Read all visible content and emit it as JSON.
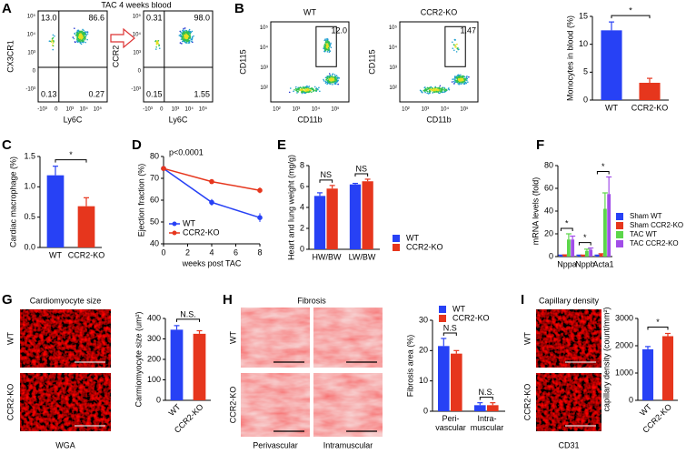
{
  "figure": {
    "panel_letters": [
      "A",
      "B",
      "C",
      "D",
      "E",
      "F",
      "G",
      "H",
      "I"
    ],
    "flow_title": "TAC 4 weeks blood",
    "flow_plots": [
      {
        "ylabel": "CX3CR1",
        "xlabel": "Ly6C",
        "quadrants": [
          "13.0",
          "86.6",
          "0.13",
          "0.27"
        ],
        "xticks": [
          "-10³",
          "0",
          "10³",
          "10⁴",
          "10⁵"
        ],
        "yticks": [
          "10⁵",
          "10⁴",
          "10³",
          "0",
          "-10³"
        ]
      },
      {
        "ylabel": "CCR2",
        "xlabel": "Ly6C",
        "quadrants": [
          "0.31",
          "98.0",
          "0.15",
          "1.55"
        ],
        "xticks": [
          "-10³",
          "0",
          "10³",
          "10⁴",
          "10⁵"
        ],
        "yticks": [
          "10⁵",
          "10⁴",
          "10³",
          "0",
          "-10³"
        ]
      },
      {
        "title": "WT",
        "ylabel": "CD115",
        "xlabel": "CD11b",
        "gate": "12.0",
        "xticks": [
          "10²",
          "10³",
          "10⁴",
          "10⁵"
        ],
        "yticks": [
          "10⁵",
          "10⁴",
          "10³",
          "10²"
        ]
      },
      {
        "title": "CCR2-KO",
        "ylabel": "CD115",
        "xlabel": "CD11b",
        "gate": "1.47",
        "xticks": [
          "10²",
          "10³",
          "10⁴",
          "10⁵"
        ],
        "yticks": [
          "10⁵",
          "10⁴",
          "10³",
          "10²"
        ]
      }
    ],
    "images": [
      {
        "title": "Cardiomyocyte size",
        "rows": [
          "WT",
          "CCR2-KO"
        ],
        "caption": "WGA"
      },
      {
        "title": "Fibrosis",
        "rows": [
          "WT",
          "CCR2-KO"
        ],
        "columns": [
          "Perivascular",
          "Intramuscular"
        ]
      },
      {
        "title": "Capillary density",
        "rows": [
          "WT",
          "CCR2-KO"
        ],
        "caption": "CD31"
      }
    ]
  },
  "chart_data": [
    {
      "type": "bar",
      "ylabel": "Monocytes in blood (%)",
      "categories": [
        "WT",
        "CCR2-KO"
      ],
      "values": [
        12.5,
        3.1
      ],
      "errors": [
        1.5,
        0.8
      ],
      "colors": [
        "#2741f5",
        "#e6361d"
      ],
      "ylim": [
        0,
        15
      ],
      "yticks": [
        0,
        5,
        10,
        15
      ],
      "annotations": [
        "*"
      ]
    },
    {
      "type": "bar",
      "ylabel": "Cardiac macrophage (%)",
      "categories": [
        "WT",
        "CCR2-KO"
      ],
      "values": [
        1.19,
        0.68
      ],
      "errors": [
        0.15,
        0.14
      ],
      "colors": [
        "#2741f5",
        "#e6361d"
      ],
      "ylim": [
        0,
        1.5
      ],
      "yticks": [
        {
          "value": 0,
          "label": "0.0"
        },
        0.5,
        {
          "value": 1,
          "label": "1.0"
        },
        1.5
      ],
      "annotations": [
        "*"
      ]
    },
    {
      "type": "line",
      "ylabel": "Ejection fraction (%)",
      "xlabel": "weeks post TAC",
      "x": [
        0,
        4,
        8
      ],
      "series": [
        {
          "name": "WT",
          "color": "#2741f5",
          "values": [
            74.5,
            59,
            52
          ],
          "errors": [
            1,
            1.5,
            2
          ]
        },
        {
          "name": "CCR2-KO",
          "color": "#e6361d",
          "values": [
            74.5,
            68.5,
            64.5
          ],
          "errors": [
            1,
            0.8,
            1.3
          ]
        }
      ],
      "xlim": [
        0,
        8
      ],
      "xticks": [
        0,
        2,
        4,
        6,
        8
      ],
      "ylim": [
        40,
        80
      ],
      "yticks": [
        40,
        50,
        60,
        70,
        80
      ],
      "annotations": [
        "p<0.0001"
      ],
      "legend": "lower left"
    },
    {
      "type": "bar",
      "ylabel": "Heart and lung weight (mg/g)",
      "categories": [
        "HW/BW",
        "LW/BW"
      ],
      "series": [
        {
          "name": "WT",
          "color": "#2741f5",
          "values": [
            5.1,
            6.2
          ],
          "errors": [
            0.3,
            0.1
          ]
        },
        {
          "name": "CCR2-KO",
          "color": "#e6361d",
          "values": [
            5.8,
            6.5
          ],
          "errors": [
            0.3,
            0.2
          ]
        }
      ],
      "ylim": [
        0,
        8
      ],
      "yticks": [
        0,
        2,
        4,
        6,
        8
      ],
      "annotations": [
        "NS",
        "NS"
      ],
      "legend": "right"
    },
    {
      "type": "bar",
      "ylabel": "mRNA levels (fold)",
      "categories": [
        "Nppa",
        "Nppb",
        "Acta1"
      ],
      "series": [
        {
          "name": "Sham WT",
          "color": "#2741f5",
          "values": [
            1,
            1,
            1
          ],
          "errors": [
            0.3,
            0.3,
            0.3
          ]
        },
        {
          "name": "Sham CCR2-KO",
          "color": "#e6361d",
          "values": [
            1.2,
            1,
            2
          ],
          "errors": [
            0.3,
            0.3,
            0.5
          ]
        },
        {
          "name": "TAC WT",
          "color": "#5cd64a",
          "values": [
            15,
            5,
            42
          ],
          "errors": [
            5,
            1.5,
            14
          ]
        },
        {
          "name": "TAC CCR2-KO",
          "color": "#a14de8",
          "values": [
            15,
            6,
            55
          ],
          "errors": [
            3,
            1.5,
            15
          ]
        }
      ],
      "ylim": [
        0,
        80
      ],
      "yticks": [
        0,
        20,
        40,
        60,
        80
      ],
      "annotations": [
        "*",
        "*",
        "*"
      ],
      "legend": "right"
    },
    {
      "type": "bar",
      "ylabel": "Carmiomyocyte size (um²)",
      "categories": [
        "WT",
        "CCR2-KO"
      ],
      "values": [
        345,
        325
      ],
      "errors": [
        20,
        15
      ],
      "colors": [
        "#2741f5",
        "#e6361d"
      ],
      "ylim": [
        0,
        400
      ],
      "yticks": [
        0,
        100,
        200,
        300,
        400
      ],
      "annotations": [
        "N.S."
      ],
      "xlabel_rotation": 45
    },
    {
      "type": "bar",
      "ylabel": "Fibrosis area (%)",
      "categories": [
        "Peri-\nvascular",
        "Intra-\nmuscular"
      ],
      "series": [
        {
          "name": "WT",
          "color": "#2741f5",
          "values": [
            21.5,
            2
          ],
          "errors": [
            2.5,
            0.8
          ]
        },
        {
          "name": "CCR2-KO",
          "color": "#e6361d",
          "values": [
            19,
            2
          ],
          "errors": [
            1,
            0.8
          ]
        }
      ],
      "ylim": [
        0,
        30
      ],
      "yticks": [
        0,
        10,
        20,
        30
      ],
      "annotations": [
        "N.S",
        "N.S."
      ],
      "legend": "top"
    },
    {
      "type": "bar",
      "ylabel": "capillary density (count/mm²)",
      "categories": [
        "WT",
        "CCR2-KO"
      ],
      "values": [
        1870,
        2350
      ],
      "errors": [
        100,
        100
      ],
      "colors": [
        "#2741f5",
        "#e6361d"
      ],
      "ylim": [
        0,
        3000
      ],
      "yticks": [
        0,
        1000,
        2000,
        3000
      ],
      "annotations": [
        "*"
      ],
      "xlabel_rotation": 45
    }
  ]
}
